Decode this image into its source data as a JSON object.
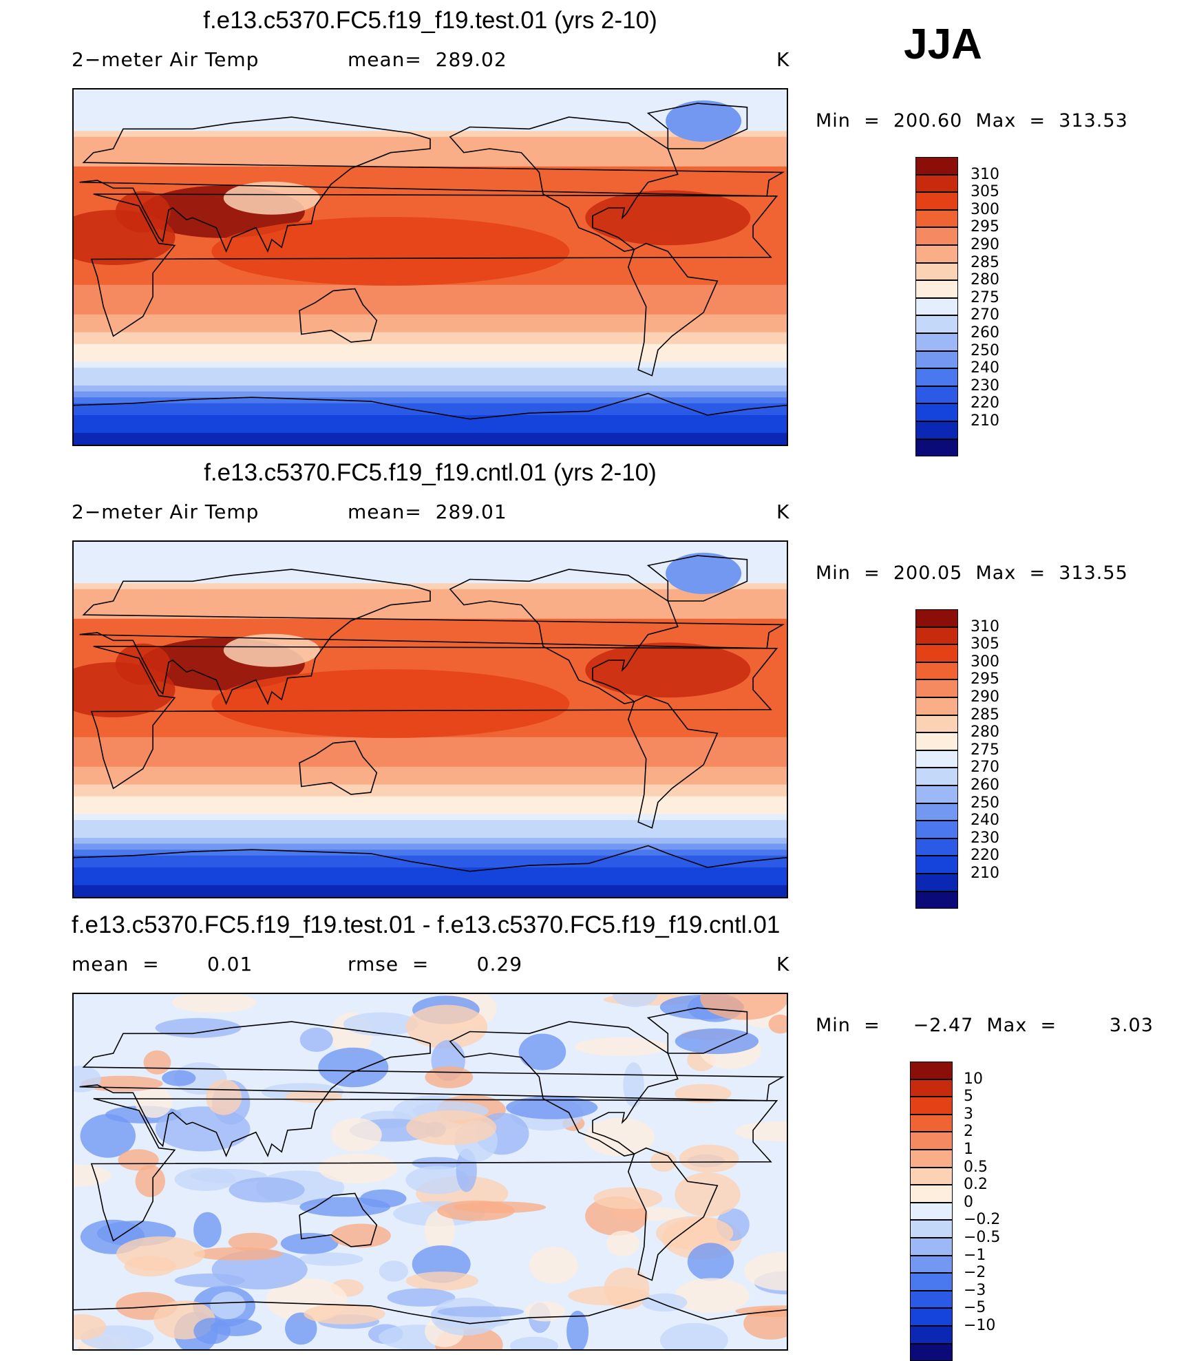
{
  "season": "JJA",
  "colors": {
    "temp_scale": [
      "#0a0a78",
      "#0a28b4",
      "#1444dc",
      "#2a5ae6",
      "#4a78ee",
      "#7298f2",
      "#9cb8f6",
      "#c4d8fa",
      "#e4eefc",
      "#fdeede",
      "#fcd2b4",
      "#f9ae88",
      "#f58a60",
      "#f06434",
      "#e44116",
      "#c82a0e",
      "#8c0e08"
    ],
    "diff_scale": [
      "#0a0a78",
      "#0a28b4",
      "#1444dc",
      "#2a5ae6",
      "#4a78ee",
      "#7298f2",
      "#9cb8f6",
      "#c4d8fa",
      "#e4eefc",
      "#fdeede",
      "#fcd2b4",
      "#f9ae88",
      "#f58a60",
      "#f06434",
      "#e44116",
      "#c82a0e",
      "#8c0e08"
    ],
    "coastline": "#000000"
  },
  "chart_data": [
    {
      "type": "heatmap",
      "panel": "test",
      "title": "f.e13.c5370.FC5.f19_f19.test.01 (yrs 2-10)",
      "variable": "2−meter Air Temp",
      "mean_label": "mean=  289.02",
      "units": "K",
      "min_max_label": "Min  =  200.60  Max  =  313.53",
      "min": 200.6,
      "max": 313.53,
      "mean": 289.02,
      "colorbar_labels": [
        "310",
        "305",
        "300",
        "295",
        "290",
        "285",
        "280",
        "275",
        "270",
        "260",
        "250",
        "240",
        "230",
        "220",
        "210"
      ],
      "colorbar_levels": [
        210,
        220,
        230,
        240,
        250,
        260,
        270,
        275,
        280,
        285,
        290,
        295,
        300,
        305,
        310
      ]
    },
    {
      "type": "heatmap",
      "panel": "cntl",
      "title": "f.e13.c5370.FC5.f19_f19.cntl.01 (yrs 2-10)",
      "variable": "2−meter Air Temp",
      "mean_label": "mean=  289.01",
      "units": "K",
      "min_max_label": "Min  =  200.05  Max  =  313.55",
      "min": 200.05,
      "max": 313.55,
      "mean": 289.01,
      "colorbar_labels": [
        "310",
        "305",
        "300",
        "295",
        "290",
        "285",
        "280",
        "275",
        "270",
        "260",
        "250",
        "240",
        "230",
        "220",
        "210"
      ],
      "colorbar_levels": [
        210,
        220,
        230,
        240,
        250,
        260,
        270,
        275,
        280,
        285,
        290,
        295,
        300,
        305,
        310
      ]
    },
    {
      "type": "heatmap",
      "panel": "diff",
      "title": "f.e13.c5370.FC5.f19_f19.test.01 - f.e13.c5370.FC5.f19_f19.cntl.01",
      "mean_label": "mean  =       0.01",
      "rmse_label": "rmse  =       0.29",
      "units": "K",
      "min_max_label": "Min  =     −2.47  Max  =        3.03",
      "min": -2.47,
      "max": 3.03,
      "mean": 0.01,
      "rmse": 0.29,
      "colorbar_labels": [
        "10",
        "5",
        "3",
        "2",
        "1",
        "0.5",
        "0.2",
        "0",
        "−0.2",
        "−0.5",
        "−1",
        "−2",
        "−3",
        "−5",
        "−10"
      ],
      "colorbar_levels": [
        -10,
        -5,
        -3,
        -2,
        -1,
        -0.5,
        -0.2,
        0,
        0.2,
        0.5,
        1,
        2,
        3,
        5,
        10
      ]
    }
  ]
}
